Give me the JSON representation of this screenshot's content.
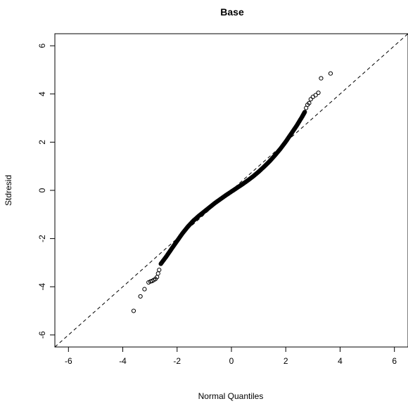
{
  "chart_data": {
    "type": "scatter",
    "title": "Base",
    "xlabel": "Normal Quantiles",
    "ylabel": "Stdresid",
    "xlim": [
      -6.5,
      6.5
    ],
    "ylim": [
      -6.5,
      6.5
    ],
    "x_ticks": [
      -6,
      -4,
      -2,
      0,
      2,
      4,
      6
    ],
    "y_ticks": [
      -6,
      -4,
      -2,
      0,
      2,
      4,
      6
    ],
    "grid": false,
    "reference_line": {
      "slope": 1,
      "intercept": 0,
      "style": "dashed"
    },
    "marker": "open-circle",
    "qq_curve": {
      "description_free": true,
      "x": [
        -2.6,
        -2.4,
        -2.2,
        -2.0,
        -1.8,
        -1.6,
        -1.4,
        -1.2,
        -1.0,
        -0.8,
        -0.6,
        -0.4,
        -0.2,
        0.0,
        0.2,
        0.4,
        0.6,
        0.8,
        1.0,
        1.2,
        1.4,
        1.6,
        1.8,
        2.0,
        2.2,
        2.4,
        2.6,
        2.7
      ],
      "y": [
        -3.05,
        -2.75,
        -2.42,
        -2.1,
        -1.78,
        -1.5,
        -1.26,
        -1.06,
        -0.88,
        -0.7,
        -0.52,
        -0.36,
        -0.2,
        -0.05,
        0.1,
        0.25,
        0.41,
        0.58,
        0.77,
        0.98,
        1.2,
        1.45,
        1.72,
        2.02,
        2.35,
        2.68,
        3.05,
        3.25
      ]
    },
    "tail_points": {
      "x": [
        -3.6,
        -3.35,
        -3.2,
        -3.05,
        -2.98,
        -2.92,
        -2.86,
        -2.8,
        -2.74,
        -2.7,
        -2.66,
        2.75,
        2.8,
        2.86,
        2.92,
        3.0,
        3.1,
        3.2,
        3.3,
        3.65
      ],
      "y": [
        -5.0,
        -4.4,
        -4.1,
        -3.82,
        -3.78,
        -3.76,
        -3.72,
        -3.68,
        -3.6,
        -3.45,
        -3.3,
        3.42,
        3.55,
        3.62,
        3.78,
        3.88,
        3.95,
        4.05,
        4.65,
        4.85
      ]
    }
  }
}
